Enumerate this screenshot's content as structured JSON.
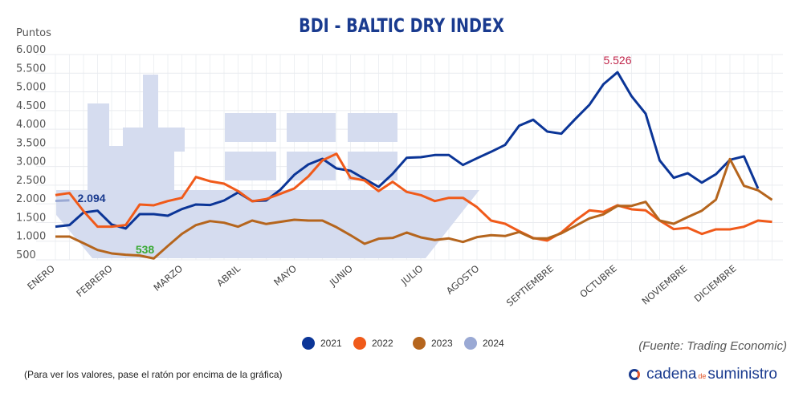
{
  "chart_data": {
    "type": "line",
    "title": "BDI - BALTIC DRY INDEX",
    "ylabel": "Puntos",
    "ylim": [
      500,
      6000
    ],
    "yticks": [
      "6.000",
      "5.500",
      "5.000",
      "4.500",
      "4.000",
      "3.500",
      "3.000",
      "2.500",
      "2.000",
      "1.500",
      "1.000",
      "500"
    ],
    "ytick_values": [
      6000,
      5500,
      5000,
      4500,
      4000,
      3500,
      3000,
      2500,
      2000,
      1500,
      1000,
      500
    ],
    "x_month_labels": [
      {
        "label": "ENERO",
        "index": 0
      },
      {
        "label": "FEBRERO",
        "index": 4.1
      },
      {
        "label": "MARZO",
        "index": 9.1
      },
      {
        "label": "ABRIL",
        "index": 13.2
      },
      {
        "label": "MAYO",
        "index": 17.2
      },
      {
        "label": "JUNIO",
        "index": 21.2
      },
      {
        "label": "JULIO",
        "index": 26.2
      },
      {
        "label": "AGOSTO",
        "index": 30.2
      },
      {
        "label": "SEPTIEMBRE",
        "index": 35.5
      },
      {
        "label": "OCTUBRE",
        "index": 40
      },
      {
        "label": "NOVIEMBRE",
        "index": 45
      },
      {
        "label": "DICIEMBRE",
        "index": 48.5
      }
    ],
    "grid": true,
    "legend_position": "bottom-center",
    "series": [
      {
        "name": "2021",
        "color": "#0b3597",
        "values": [
          1388,
          1431,
          1768,
          1817,
          1446,
          1338,
          1725,
          1725,
          1682,
          1860,
          1983,
          1968,
          2090,
          2305,
          2075,
          2090,
          2376,
          2778,
          3057,
          3207,
          2949,
          2885,
          2670,
          2455,
          2806,
          3235,
          3250,
          3308,
          3308,
          3042,
          3222,
          3394,
          3579,
          4094,
          4253,
          3938,
          3880,
          4275,
          4653,
          5205,
          5526,
          4883,
          4417,
          3164,
          2698,
          2821,
          2569,
          2793,
          3179,
          3272,
          2412
        ]
      },
      {
        "name": "2022",
        "color": "#f05a1a",
        "values": [
          2234,
          2290,
          1805,
          1388,
          1388,
          1431,
          1983,
          1961,
          2075,
          2161,
          2720,
          2606,
          2541,
          2342,
          2069,
          2127,
          2269,
          2412,
          2735,
          3164,
          3343,
          2698,
          2627,
          2342,
          2591,
          2320,
          2234,
          2075,
          2161,
          2161,
          1912,
          1553,
          1467,
          1268,
          1087,
          1016,
          1231,
          1553,
          1826,
          1783,
          1961,
          1854,
          1826,
          1553,
          1323,
          1360,
          1195,
          1317,
          1317,
          1388,
          1553,
          1517
        ]
      },
      {
        "name": "2023",
        "color": "#b5651d",
        "values": [
          1124,
          1124,
          945,
          765,
          673,
          636,
          615,
          538,
          872,
          1195,
          1431,
          1538,
          1495,
          1388,
          1553,
          1461,
          1517,
          1575,
          1553,
          1553,
          1375,
          1160,
          930,
          1066,
          1087,
          1231,
          1102,
          1031,
          1074,
          980,
          1109,
          1160,
          1139,
          1246,
          1074,
          1074,
          1210,
          1409,
          1611,
          1719,
          1946,
          1946,
          2054,
          1553,
          1467,
          1646,
          1817,
          2112,
          3201,
          2483,
          2363,
          2105
        ]
      },
      {
        "name": "2024",
        "color": "#9aa9d4",
        "values": [
          2080,
          2094
        ]
      }
    ],
    "annotations": [
      {
        "text": "5.526",
        "series": "2021",
        "index": 40,
        "color": "#c0254a"
      },
      {
        "text": "2.094",
        "series": "2024",
        "index": 1,
        "color": "#1a3b8f"
      },
      {
        "text": "538",
        "series": "2023",
        "index": 7,
        "color": "#3aaa35"
      }
    ]
  },
  "footer": {
    "note": "(Para ver los valores, pase el ratón por encima de la gráfica)",
    "source": "(Fuente: Trading Economic)",
    "logo_main": "cadena",
    "logo_de": "de",
    "logo_end": "suministro"
  }
}
